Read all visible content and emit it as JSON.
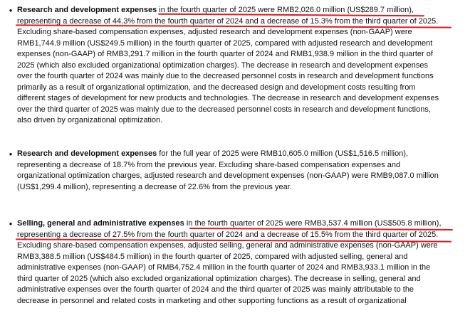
{
  "colors": {
    "text": "#111111",
    "underline": "#e0191f"
  },
  "items": [
    {
      "heading": "Research and development expenses",
      "lines": [
        " in the fourth quarter of 2025 were RMB2,026.0 million (US$289.7 million),",
        "representing a decrease of 44.3% from the fourth quarter of 2024 and a decrease of 15.3% from the third quarter of 2025.",
        "Excluding share-based compensation expenses, adjusted research and development expenses (non-GAAP) were",
        "RMB1,744.9 million (US$249.5 million) in the fourth quarter of 2025, compared with adjusted research and development",
        "expenses (non-GAAP) of RMB3,291.7 million in the fourth quarter of 2024 and RMB1,938.9 million in the third quarter of",
        "2025 (which also excluded organizational optimization charges). The decrease in research and development expenses",
        "over the fourth quarter of 2024 was mainly due to the decreased personnel costs in research and development functions",
        "primarily as a result of organizational optimization, and the decreased design and development costs resulting from",
        "different stages of development for new products and technologies. The decrease in research and development expenses",
        "over the third quarter of 2025 was mainly due to the decreased personnel costs in research and development functions,",
        "also driven by organizational optimization."
      ]
    },
    {
      "heading": "Research and development expenses",
      "lines": [
        " for the full year of 2025 were RMB10,605.0 million (US$1,516.5 million),",
        "representing a decrease of 18.7% from the previous year. Excluding share-based compensation expenses and",
        "organizational optimization charges, adjusted research and development expenses (non-GAAP) were RMB9,087.0 million",
        "(US$1,299.4 million), representing a decrease of 22.6% from the previous year."
      ]
    },
    {
      "heading": "Selling, general and administrative expenses",
      "lines": [
        " in the fourth quarter of 2025 were RMB3,537.4 million (US$505.8 million),",
        "representing a decrease of 27.5% from the fourth quarter of 2024 and a decrease of 15.5% from the third quarter of 2025.",
        "Excluding share-based compensation expenses, adjusted selling, general and administrative expenses (non-GAAP) were",
        "RMB3,388.5 million (US$484.5 million) in the fourth quarter of 2025, compared with adjusted selling, general and",
        "administrative expenses (non-GAAP) of RMB4,752.4 million in the fourth quarter of 2024 and RMB3,933.1 million in the",
        "third quarter of 2025 (which also excluded organizational optimization charges). The decrease in selling, general and",
        "administrative expenses over the fourth quarter of 2024 and the third quarter of 2025 was mainly attributable to the",
        "decrease in personnel and related costs in marketing and other supporting functions as a result of organizational"
      ]
    }
  ]
}
